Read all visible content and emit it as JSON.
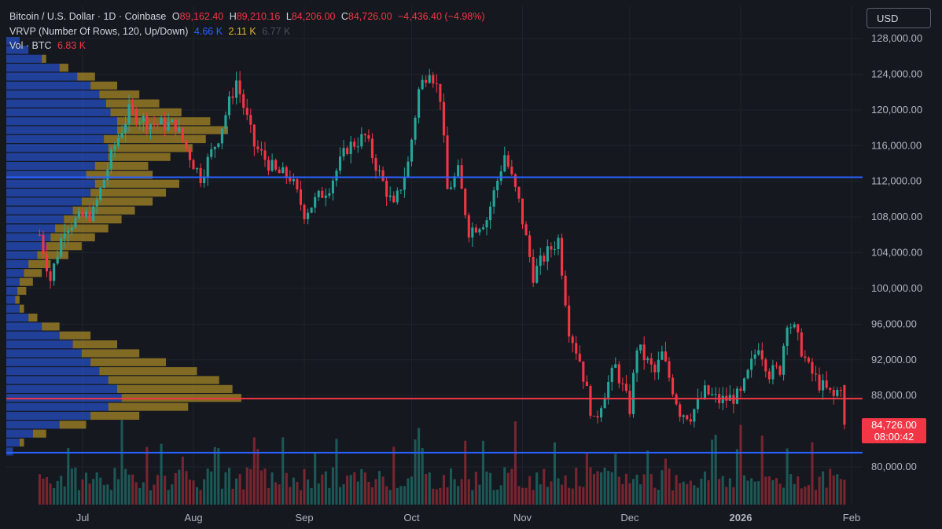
{
  "header": {
    "symbol": "Bitcoin / U.S. Dollar · 1D · Coinbase",
    "open_label": "O",
    "open": "89,162.40",
    "high_label": "H",
    "high": "89,210.16",
    "low_label": "L",
    "low": "84,206.00",
    "close_label": "C",
    "close": "84,726.00",
    "change": "−4,436.40 (−4.98%)"
  },
  "vrvp": {
    "label": "VRVP (Number Of Rows, 120, Up/Down)",
    "up": "4.66 K",
    "down": "2.11 K",
    "total": "6.77 K"
  },
  "volume": {
    "label": "Vol · BTC",
    "value": "6.83 K"
  },
  "currency_button": "USD",
  "last_price": {
    "price": "84,726.00",
    "countdown": "08:00:42"
  },
  "colors": {
    "up": "#26a69a",
    "down": "#f23645",
    "vp_up": "#2962ff",
    "vp_down": "#c9a227",
    "background": "#15181f"
  },
  "chart_data": {
    "type": "candlestick",
    "y_axis": {
      "ticks": [
        "128,000.00",
        "124,000.00",
        "120,000.00",
        "116,000.00",
        "112,000.00",
        "108,000.00",
        "104,000.00",
        "100,000.00",
        "96,000.00",
        "92,000.00",
        "88,000.00",
        "80,000.00"
      ],
      "tick_values": [
        128000,
        124000,
        120000,
        116000,
        112000,
        108000,
        104000,
        100000,
        96000,
        92000,
        88000,
        80000
      ],
      "range": [
        77000,
        130000
      ]
    },
    "x_axis": {
      "ticks": [
        "Jul",
        "Aug",
        "Sep",
        "Oct",
        "Nov",
        "Dec",
        "2026",
        "Feb"
      ],
      "tick_dates": [
        "2025-07-01",
        "2025-08-01",
        "2025-09-01",
        "2025-10-01",
        "2025-11-01",
        "2025-12-01",
        "2026-01-01",
        "2026-02-01"
      ],
      "range": [
        "2025-06-18",
        "2026-02-03"
      ]
    },
    "horizontal_lines": [
      {
        "value": 112450,
        "color": "#2962ff"
      },
      {
        "value": 87650,
        "color": "#f23645"
      },
      {
        "value": 81600,
        "color": "#2962ff"
      }
    ],
    "price_path": [
      {
        "date": "2025-06-19",
        "close": 106000
      },
      {
        "date": "2025-06-22",
        "close": 101000
      },
      {
        "date": "2025-06-26",
        "close": 107000
      },
      {
        "date": "2025-07-04",
        "close": 108500
      },
      {
        "date": "2025-07-10",
        "close": 116000
      },
      {
        "date": "2025-07-14",
        "close": 119800
      },
      {
        "date": "2025-07-20",
        "close": 118500
      },
      {
        "date": "2025-07-27",
        "close": 118300
      },
      {
        "date": "2025-08-01",
        "close": 114000
      },
      {
        "date": "2025-08-03",
        "close": 112500
      },
      {
        "date": "2025-08-08",
        "close": 117000
      },
      {
        "date": "2025-08-13",
        "close": 123300
      },
      {
        "date": "2025-08-18",
        "close": 116000
      },
      {
        "date": "2025-08-24",
        "close": 113000
      },
      {
        "date": "2025-08-28",
        "close": 112500
      },
      {
        "date": "2025-09-01",
        "close": 108500
      },
      {
        "date": "2025-09-08",
        "close": 111500
      },
      {
        "date": "2025-09-13",
        "close": 115800
      },
      {
        "date": "2025-09-18",
        "close": 117000
      },
      {
        "date": "2025-09-22",
        "close": 112800
      },
      {
        "date": "2025-09-26",
        "close": 109000
      },
      {
        "date": "2025-09-30",
        "close": 114000
      },
      {
        "date": "2025-10-03",
        "close": 122200
      },
      {
        "date": "2025-10-06",
        "close": 124800
      },
      {
        "date": "2025-10-09",
        "close": 121500
      },
      {
        "date": "2025-10-11",
        "close": 111000
      },
      {
        "date": "2025-10-14",
        "close": 113000
      },
      {
        "date": "2025-10-17",
        "close": 106500
      },
      {
        "date": "2025-10-22",
        "close": 107800
      },
      {
        "date": "2025-10-27",
        "close": 115000
      },
      {
        "date": "2025-10-31",
        "close": 109600
      },
      {
        "date": "2025-11-04",
        "close": 101500
      },
      {
        "date": "2025-11-07",
        "close": 103500
      },
      {
        "date": "2025-11-11",
        "close": 105500
      },
      {
        "date": "2025-11-14",
        "close": 95500
      },
      {
        "date": "2025-11-17",
        "close": 92000
      },
      {
        "date": "2025-11-21",
        "close": 84800
      },
      {
        "date": "2025-11-24",
        "close": 88500
      },
      {
        "date": "2025-11-27",
        "close": 91200
      },
      {
        "date": "2025-12-01",
        "close": 86500
      },
      {
        "date": "2025-12-03",
        "close": 93500
      },
      {
        "date": "2025-12-08",
        "close": 90500
      },
      {
        "date": "2025-12-10",
        "close": 92600
      },
      {
        "date": "2025-12-15",
        "close": 86200
      },
      {
        "date": "2025-12-18",
        "close": 85800
      },
      {
        "date": "2025-12-22",
        "close": 88400
      },
      {
        "date": "2025-12-26",
        "close": 87400
      },
      {
        "date": "2026-01-01",
        "close": 88000
      },
      {
        "date": "2026-01-04",
        "close": 91500
      },
      {
        "date": "2026-01-06",
        "close": 93800
      },
      {
        "date": "2026-01-09",
        "close": 90500
      },
      {
        "date": "2026-01-12",
        "close": 91000
      },
      {
        "date": "2026-01-14",
        "close": 96500
      },
      {
        "date": "2026-01-16",
        "close": 95300
      },
      {
        "date": "2026-01-20",
        "close": 91000
      },
      {
        "date": "2026-01-23",
        "close": 89300
      },
      {
        "date": "2026-01-27",
        "close": 87800
      },
      {
        "date": "2026-01-29",
        "close": 89200
      },
      {
        "date": "2026-01-30",
        "close": 84726
      }
    ],
    "volume_profile": [
      {
        "price": 128000,
        "up": 0.06,
        "down": 0.0
      },
      {
        "price": 127000,
        "up": 0.1,
        "down": 0.0
      },
      {
        "price": 126000,
        "up": 0.16,
        "down": 0.02
      },
      {
        "price": 125000,
        "up": 0.24,
        "down": 0.04
      },
      {
        "price": 124000,
        "up": 0.32,
        "down": 0.08
      },
      {
        "price": 123000,
        "up": 0.38,
        "down": 0.12
      },
      {
        "price": 122000,
        "up": 0.42,
        "down": 0.18
      },
      {
        "price": 121000,
        "up": 0.45,
        "down": 0.24
      },
      {
        "price": 120000,
        "up": 0.47,
        "down": 0.32
      },
      {
        "price": 119000,
        "up": 0.5,
        "down": 0.42
      },
      {
        "price": 118000,
        "up": 0.5,
        "down": 0.5
      },
      {
        "price": 117000,
        "up": 0.44,
        "down": 0.46
      },
      {
        "price": 116000,
        "up": 0.46,
        "down": 0.38
      },
      {
        "price": 115000,
        "up": 0.46,
        "down": 0.28
      },
      {
        "price": 114000,
        "up": 0.4,
        "down": 0.24
      },
      {
        "price": 113000,
        "up": 0.36,
        "down": 0.3
      },
      {
        "price": 112000,
        "up": 0.4,
        "down": 0.38
      },
      {
        "price": 111000,
        "up": 0.38,
        "down": 0.34
      },
      {
        "price": 110000,
        "up": 0.34,
        "down": 0.32
      },
      {
        "price": 109000,
        "up": 0.3,
        "down": 0.28
      },
      {
        "price": 108000,
        "up": 0.26,
        "down": 0.26
      },
      {
        "price": 107000,
        "up": 0.22,
        "down": 0.24
      },
      {
        "price": 106000,
        "up": 0.2,
        "down": 0.2
      },
      {
        "price": 105000,
        "up": 0.18,
        "down": 0.16
      },
      {
        "price": 104000,
        "up": 0.14,
        "down": 0.14
      },
      {
        "price": 103000,
        "up": 0.1,
        "down": 0.1
      },
      {
        "price": 102000,
        "up": 0.08,
        "down": 0.08
      },
      {
        "price": 101000,
        "up": 0.06,
        "down": 0.06
      },
      {
        "price": 100000,
        "up": 0.05,
        "down": 0.04
      },
      {
        "price": 99000,
        "up": 0.04,
        "down": 0.02
      },
      {
        "price": 98000,
        "up": 0.06,
        "down": 0.02
      },
      {
        "price": 97000,
        "up": 0.1,
        "down": 0.04
      },
      {
        "price": 96000,
        "up": 0.16,
        "down": 0.08
      },
      {
        "price": 95000,
        "up": 0.24,
        "down": 0.14
      },
      {
        "price": 94000,
        "up": 0.3,
        "down": 0.2
      },
      {
        "price": 93000,
        "up": 0.34,
        "down": 0.26
      },
      {
        "price": 92000,
        "up": 0.38,
        "down": 0.34
      },
      {
        "price": 91000,
        "up": 0.42,
        "down": 0.44
      },
      {
        "price": 90000,
        "up": 0.46,
        "down": 0.5
      },
      {
        "price": 89000,
        "up": 0.5,
        "down": 0.52
      },
      {
        "price": 88000,
        "up": 0.52,
        "down": 0.54
      },
      {
        "price": 87000,
        "up": 0.46,
        "down": 0.36
      },
      {
        "price": 86000,
        "up": 0.38,
        "down": 0.22
      },
      {
        "price": 85000,
        "up": 0.24,
        "down": 0.12
      },
      {
        "price": 84000,
        "up": 0.12,
        "down": 0.06
      },
      {
        "price": 83000,
        "up": 0.06,
        "down": 0.02
      },
      {
        "price": 82000,
        "up": 0.03,
        "down": 0.0
      }
    ]
  }
}
